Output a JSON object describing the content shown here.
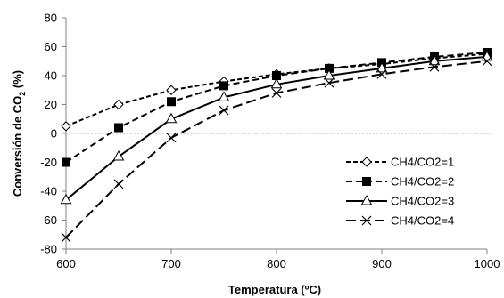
{
  "chart_data": {
    "type": "line",
    "xlabel": "Temperatura (ºC)",
    "ylabel_main": "Conversión de CO",
    "ylabel_sub": "2",
    "ylabel_unit": " (%)",
    "xlim": [
      600,
      1000
    ],
    "ylim": [
      -80,
      80
    ],
    "x_ticks": [
      600,
      700,
      800,
      900,
      1000
    ],
    "y_ticks": [
      -80,
      -60,
      -40,
      -20,
      0,
      20,
      40,
      60,
      80
    ],
    "zero_reference_line": true,
    "grid": false,
    "legend_position": "right",
    "x": [
      600,
      650,
      700,
      750,
      800,
      850,
      900,
      950,
      1000
    ],
    "series": [
      {
        "name": "CH4/CO2=1",
        "marker": "diamond-open",
        "line": "dashed-short",
        "values": [
          5,
          20,
          30,
          36,
          41,
          45,
          48,
          52,
          55
        ]
      },
      {
        "name": "CH4/CO2=2",
        "marker": "square-filled",
        "line": "dashed",
        "values": [
          -20,
          4,
          22,
          33,
          40,
          45,
          49,
          53,
          56
        ]
      },
      {
        "name": "CH4/CO2=3",
        "marker": "triangle-open",
        "line": "solid",
        "values": [
          -46,
          -16,
          10,
          25,
          34,
          40,
          45,
          50,
          53
        ]
      },
      {
        "name": "CH4/CO2=4",
        "marker": "x",
        "line": "dashed-long",
        "values": [
          -72,
          -35,
          -3,
          16,
          28,
          35,
          41,
          46,
          50
        ]
      }
    ]
  }
}
